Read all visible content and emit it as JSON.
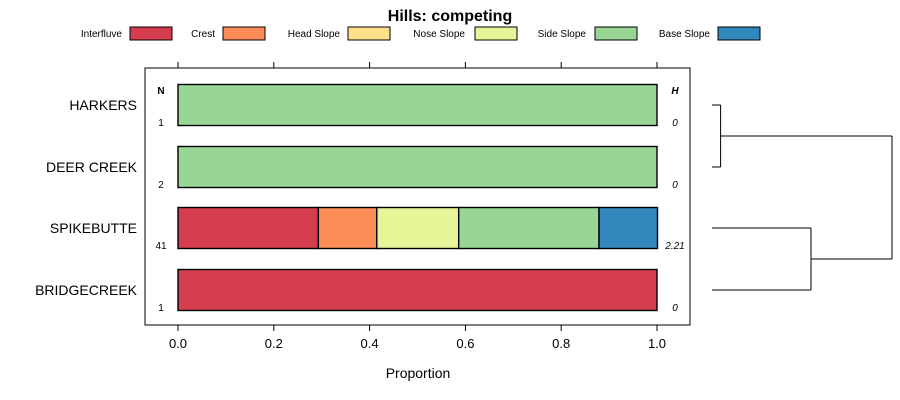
{
  "chart_data": {
    "type": "bar",
    "orientation": "horizontal",
    "stacked": true,
    "title": "Hills: competing",
    "xlabel": "Proportion",
    "ylabel": "",
    "xlim": [
      0,
      1
    ],
    "x_ticks": [
      "0.0",
      "0.2",
      "0.4",
      "0.6",
      "0.8",
      "1.0"
    ],
    "x_tick_values": [
      0,
      0.2,
      0.4,
      0.6,
      0.8,
      1.0
    ],
    "legend_position": "top",
    "legend": [
      {
        "name": "Interfluve",
        "color": "#D53E4F"
      },
      {
        "name": "Crest",
        "color": "#FC8D59"
      },
      {
        "name": "Head Slope",
        "color": "#FEE08B"
      },
      {
        "name": "Nose Slope",
        "color": "#E6F598"
      },
      {
        "name": "Side Slope",
        "color": "#99D594"
      },
      {
        "name": "Base Slope",
        "color": "#3288BD"
      }
    ],
    "n_header": "N",
    "h_header": "H",
    "categories": [
      "HARKERS",
      "DEER CREEK",
      "SPIKEBUTTE",
      "BRIDGECREEK"
    ],
    "n_values": [
      "1",
      "2",
      "41",
      "1"
    ],
    "h_values": [
      "0",
      "0",
      "2.21",
      "0"
    ],
    "series": [
      {
        "name": "Interfluve",
        "values": [
          0,
          0,
          0.293,
          1
        ]
      },
      {
        "name": "Crest",
        "values": [
          0,
          0,
          0.122,
          0
        ]
      },
      {
        "name": "Head Slope",
        "values": [
          0,
          0,
          0,
          0
        ]
      },
      {
        "name": "Nose Slope",
        "values": [
          0,
          0,
          0.171,
          0
        ]
      },
      {
        "name": "Side Slope",
        "values": [
          1,
          1,
          0.293,
          0
        ]
      },
      {
        "name": "Base Slope",
        "values": [
          0,
          0,
          0.122,
          0
        ]
      }
    ],
    "dendrogram": {
      "leaf_order": [
        "HARKERS",
        "DEER CREEK",
        "SPIKEBUTTE",
        "BRIDGECREEK"
      ],
      "merges": [
        {
          "left": "HARKERS",
          "right": "DEER CREEK",
          "height": 0.02
        },
        {
          "left": "SPIKEBUTTE",
          "right": "BRIDGECREEK",
          "height": 0.55
        },
        {
          "left": "HARKERS+DEER CREEK",
          "right": "SPIKEBUTTE+BRIDGECREEK",
          "height": 1.0
        }
      ]
    }
  }
}
